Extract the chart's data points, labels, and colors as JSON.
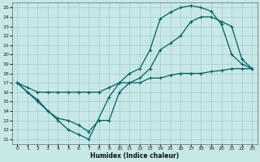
{
  "xlabel": "Humidex (Indice chaleur)",
  "bg_color": "#c8e8e8",
  "grid_color": "#a0cccc",
  "line_color": "#006060",
  "xlim": [
    -0.5,
    23.5
  ],
  "ylim": [
    10.5,
    25.5
  ],
  "yticks": [
    11,
    12,
    13,
    14,
    15,
    16,
    17,
    18,
    19,
    20,
    21,
    22,
    23,
    24,
    25
  ],
  "xticks": [
    0,
    1,
    2,
    3,
    4,
    5,
    6,
    7,
    8,
    9,
    10,
    11,
    12,
    13,
    14,
    15,
    16,
    17,
    18,
    19,
    20,
    21,
    22,
    23
  ],
  "line1_x": [
    0,
    1,
    2,
    3,
    4,
    5,
    6,
    7,
    9,
    10,
    11,
    12,
    13,
    14,
    15,
    16,
    17,
    18,
    19,
    20,
    21,
    22,
    23
  ],
  "line1_y": [
    17,
    16,
    15,
    14,
    13,
    12,
    11.5,
    11,
    15.5,
    17,
    18,
    18.5,
    20.5,
    23.8,
    24.5,
    25.0,
    25.2,
    25.0,
    24.6,
    23.2,
    20.0,
    19.0,
    18.5
  ],
  "line2_x": [
    0,
    1,
    2,
    3,
    4,
    5,
    6,
    7,
    8,
    9,
    10,
    11,
    12,
    13,
    14,
    15,
    16,
    17,
    18,
    19,
    20,
    21,
    22,
    23
  ],
  "line2_y": [
    17,
    16.5,
    16,
    16,
    16,
    16,
    16,
    16,
    16,
    16.5,
    17,
    17,
    17,
    17.5,
    17.5,
    17.8,
    18,
    18,
    18,
    18.2,
    18.3,
    18.5,
    18.5,
    18.5
  ],
  "line3_x": [
    0,
    1,
    2,
    3,
    4,
    5,
    6,
    7,
    8,
    9,
    10,
    11,
    12,
    13,
    14,
    15,
    16,
    17,
    18,
    19,
    20,
    21,
    22,
    23
  ],
  "line3_y": [
    17,
    16,
    15.2,
    14,
    13.2,
    13,
    12.5,
    11.8,
    13,
    13,
    16,
    17,
    17.5,
    18.5,
    20.5,
    21.2,
    22,
    23.5,
    24,
    24,
    23.5,
    23,
    19.5,
    18.5
  ]
}
